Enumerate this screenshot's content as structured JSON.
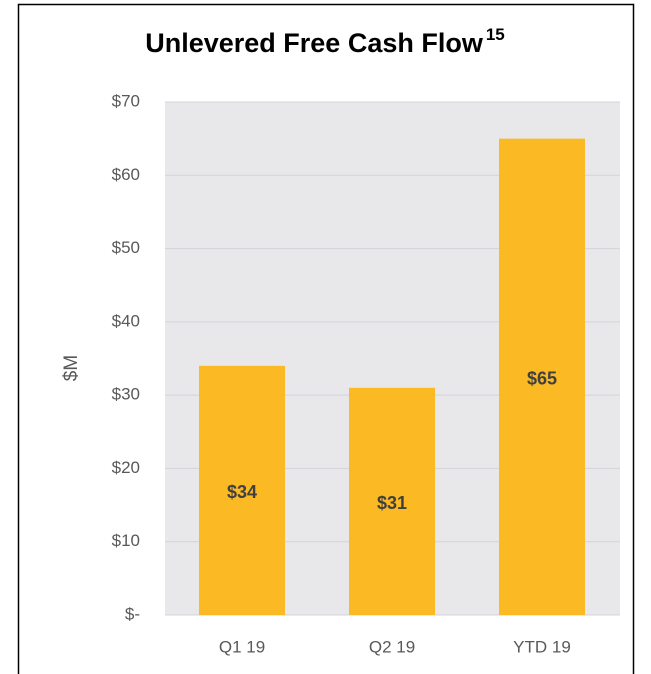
{
  "chart_data": {
    "type": "bar",
    "title": "Unlevered Free Cash Flow",
    "title_note": "15",
    "y_label": "$M",
    "categories": [
      "Q1 19",
      "Q2 19",
      "YTD 19"
    ],
    "values": [
      34,
      31,
      65
    ],
    "value_labels": [
      "$34",
      "$31",
      "$65"
    ],
    "color": "#fbb923",
    "ylim": [
      0,
      70
    ],
    "yticks": [
      {
        "value": 0,
        "label": "$-"
      },
      {
        "value": 10,
        "label": "$10"
      },
      {
        "value": 20,
        "label": "$20"
      },
      {
        "value": 30,
        "label": "$30"
      },
      {
        "value": 40,
        "label": "$40"
      },
      {
        "value": 50,
        "label": "$50"
      },
      {
        "value": 60,
        "label": "$60"
      },
      {
        "value": 70,
        "label": "$70"
      }
    ],
    "grid": true
  }
}
